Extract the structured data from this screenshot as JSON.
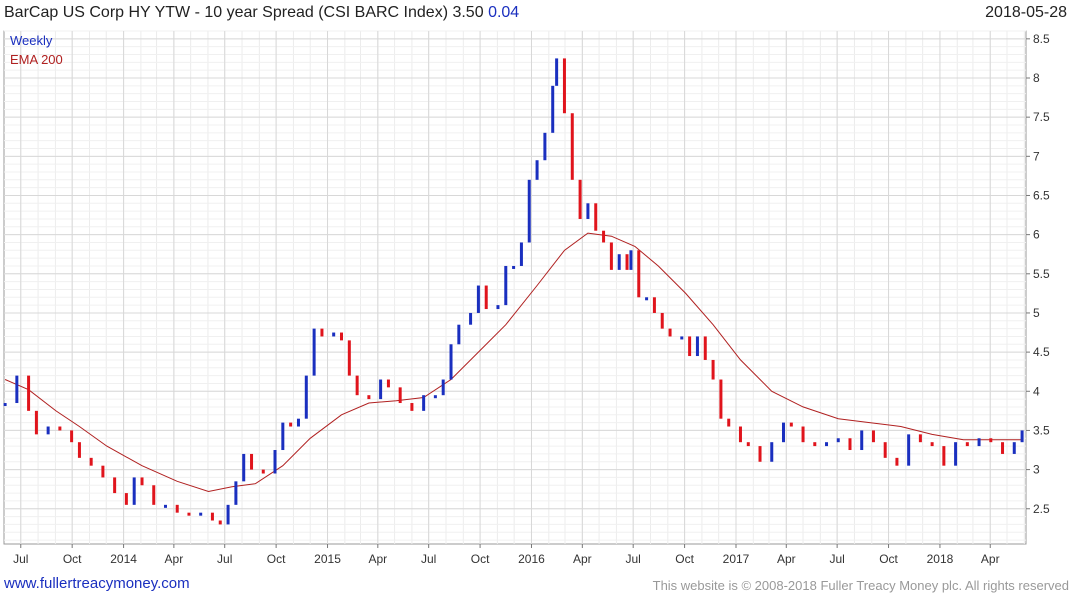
{
  "header": {
    "title": "BarCap US Corp HY YTW - 10 year Spread (CSI BARC Index) 3.50",
    "change": "0.04",
    "date": "2018-05-28"
  },
  "legend": {
    "weekly": "Weekly",
    "ema": "EMA 200"
  },
  "footer": {
    "link": "www.fullertreacymoney.com",
    "copyright": "This website is © 2008-2018 Fuller Treacy Money plc. All rights reserved"
  },
  "colors": {
    "up": "#1a2fbf",
    "down": "#e0141c",
    "ema": "#b02020",
    "grid": "#d8d8d8"
  },
  "chart_data": {
    "type": "line",
    "ylim": [
      2.05,
      8.6
    ],
    "yticks": [
      2.5,
      3,
      3.5,
      4,
      4.5,
      5,
      5.5,
      6,
      6.5,
      7,
      7.5,
      8,
      8.5
    ],
    "x_range": [
      "2013-06-01",
      "2018-06-04"
    ],
    "xticks": [
      {
        "label": "Jul",
        "date": "2013-07-01"
      },
      {
        "label": "Oct",
        "date": "2013-10-01"
      },
      {
        "label": "2014",
        "date": "2014-01-01"
      },
      {
        "label": "Apr",
        "date": "2014-04-01"
      },
      {
        "label": "Jul",
        "date": "2014-07-01"
      },
      {
        "label": "Oct",
        "date": "2014-10-01"
      },
      {
        "label": "2015",
        "date": "2015-01-01"
      },
      {
        "label": "Apr",
        "date": "2015-04-01"
      },
      {
        "label": "Jul",
        "date": "2015-07-01"
      },
      {
        "label": "Oct",
        "date": "2015-10-01"
      },
      {
        "label": "2016",
        "date": "2016-01-01"
      },
      {
        "label": "Apr",
        "date": "2016-04-01"
      },
      {
        "label": "Jul",
        "date": "2016-07-01"
      },
      {
        "label": "Oct",
        "date": "2016-10-01"
      },
      {
        "label": "2017",
        "date": "2017-01-01"
      },
      {
        "label": "Apr",
        "date": "2017-04-01"
      },
      {
        "label": "Jul",
        "date": "2017-07-01"
      },
      {
        "label": "Oct",
        "date": "2017-10-01"
      },
      {
        "label": "2018",
        "date": "2018-01-01"
      },
      {
        "label": "Apr",
        "date": "2018-04-01"
      }
    ],
    "series": [
      {
        "name": "Weekly",
        "points": [
          [
            "2013-06-03",
            3.85
          ],
          [
            "2013-06-24",
            4.2
          ],
          [
            "2013-07-15",
            3.75
          ],
          [
            "2013-07-29",
            3.45
          ],
          [
            "2013-08-19",
            3.55
          ],
          [
            "2013-09-09",
            3.5
          ],
          [
            "2013-09-30",
            3.35
          ],
          [
            "2013-10-14",
            3.15
          ],
          [
            "2013-11-04",
            3.05
          ],
          [
            "2013-11-25",
            2.9
          ],
          [
            "2013-12-16",
            2.7
          ],
          [
            "2014-01-06",
            2.55
          ],
          [
            "2014-01-20",
            2.9
          ],
          [
            "2014-02-03",
            2.8
          ],
          [
            "2014-02-24",
            2.55
          ],
          [
            "2014-03-17",
            2.55
          ],
          [
            "2014-04-07",
            2.45
          ],
          [
            "2014-04-28",
            2.42
          ],
          [
            "2014-05-19",
            2.45
          ],
          [
            "2014-06-09",
            2.35
          ],
          [
            "2014-06-23",
            2.3
          ],
          [
            "2014-07-07",
            2.55
          ],
          [
            "2014-07-21",
            2.85
          ],
          [
            "2014-08-04",
            3.2
          ],
          [
            "2014-08-18",
            3.0
          ],
          [
            "2014-09-08",
            2.95
          ],
          [
            "2014-09-29",
            3.25
          ],
          [
            "2014-10-13",
            3.6
          ],
          [
            "2014-10-27",
            3.55
          ],
          [
            "2014-11-10",
            3.65
          ],
          [
            "2014-11-24",
            4.2
          ],
          [
            "2014-12-08",
            4.8
          ],
          [
            "2014-12-22",
            4.7
          ],
          [
            "2015-01-12",
            4.75
          ],
          [
            "2015-01-26",
            4.65
          ],
          [
            "2015-02-09",
            4.2
          ],
          [
            "2015-02-23",
            3.95
          ],
          [
            "2015-03-16",
            3.9
          ],
          [
            "2015-04-06",
            4.15
          ],
          [
            "2015-04-20",
            4.05
          ],
          [
            "2015-05-11",
            3.85
          ],
          [
            "2015-06-01",
            3.75
          ],
          [
            "2015-06-22",
            3.95
          ],
          [
            "2015-07-13",
            3.95
          ],
          [
            "2015-07-27",
            4.15
          ],
          [
            "2015-08-10",
            4.6
          ],
          [
            "2015-08-24",
            4.85
          ],
          [
            "2015-09-14",
            5.0
          ],
          [
            "2015-09-28",
            5.35
          ],
          [
            "2015-10-12",
            5.05
          ],
          [
            "2015-11-02",
            5.1
          ],
          [
            "2015-11-16",
            5.6
          ],
          [
            "2015-11-30",
            5.6
          ],
          [
            "2015-12-14",
            5.9
          ],
          [
            "2015-12-28",
            6.7
          ],
          [
            "2016-01-11",
            6.95
          ],
          [
            "2016-01-25",
            7.3
          ],
          [
            "2016-02-08",
            7.9
          ],
          [
            "2016-02-15",
            8.25
          ],
          [
            "2016-02-29",
            7.55
          ],
          [
            "2016-03-14",
            6.7
          ],
          [
            "2016-03-28",
            6.2
          ],
          [
            "2016-04-11",
            6.4
          ],
          [
            "2016-04-25",
            6.05
          ],
          [
            "2016-05-09",
            5.9
          ],
          [
            "2016-05-23",
            5.55
          ],
          [
            "2016-06-06",
            5.75
          ],
          [
            "2016-06-20",
            5.55
          ],
          [
            "2016-06-27",
            5.8
          ],
          [
            "2016-07-11",
            5.2
          ],
          [
            "2016-07-25",
            5.2
          ],
          [
            "2016-08-08",
            5.0
          ],
          [
            "2016-08-22",
            4.8
          ],
          [
            "2016-09-05",
            4.7
          ],
          [
            "2016-09-26",
            4.7
          ],
          [
            "2016-10-10",
            4.45
          ],
          [
            "2016-10-24",
            4.7
          ],
          [
            "2016-11-07",
            4.4
          ],
          [
            "2016-11-21",
            4.15
          ],
          [
            "2016-12-05",
            3.65
          ],
          [
            "2016-12-19",
            3.55
          ],
          [
            "2017-01-09",
            3.35
          ],
          [
            "2017-01-23",
            3.3
          ],
          [
            "2017-02-13",
            3.1
          ],
          [
            "2017-03-06",
            3.35
          ],
          [
            "2017-03-27",
            3.6
          ],
          [
            "2017-04-10",
            3.55
          ],
          [
            "2017-05-01",
            3.35
          ],
          [
            "2017-05-22",
            3.3
          ],
          [
            "2017-06-12",
            3.35
          ],
          [
            "2017-07-03",
            3.4
          ],
          [
            "2017-07-24",
            3.25
          ],
          [
            "2017-08-14",
            3.5
          ],
          [
            "2017-09-04",
            3.35
          ],
          [
            "2017-09-25",
            3.15
          ],
          [
            "2017-10-16",
            3.05
          ],
          [
            "2017-11-06",
            3.45
          ],
          [
            "2017-11-27",
            3.35
          ],
          [
            "2017-12-18",
            3.3
          ],
          [
            "2018-01-08",
            3.05
          ],
          [
            "2018-01-29",
            3.35
          ],
          [
            "2018-02-19",
            3.3
          ],
          [
            "2018-03-12",
            3.4
          ],
          [
            "2018-04-02",
            3.35
          ],
          [
            "2018-04-23",
            3.2
          ],
          [
            "2018-05-14",
            3.35
          ],
          [
            "2018-05-28",
            3.5
          ]
        ]
      },
      {
        "name": "EMA 200",
        "points": [
          [
            "2013-06-03",
            4.15
          ],
          [
            "2013-07-15",
            4.02
          ],
          [
            "2013-09-02",
            3.75
          ],
          [
            "2013-10-14",
            3.55
          ],
          [
            "2013-12-02",
            3.3
          ],
          [
            "2014-02-03",
            3.05
          ],
          [
            "2014-04-07",
            2.85
          ],
          [
            "2014-06-02",
            2.72
          ],
          [
            "2014-07-14",
            2.78
          ],
          [
            "2014-08-25",
            2.82
          ],
          [
            "2014-10-13",
            3.05
          ],
          [
            "2014-12-01",
            3.4
          ],
          [
            "2015-01-26",
            3.7
          ],
          [
            "2015-03-16",
            3.85
          ],
          [
            "2015-05-04",
            3.88
          ],
          [
            "2015-06-22",
            3.92
          ],
          [
            "2015-08-10",
            4.15
          ],
          [
            "2015-09-28",
            4.5
          ],
          [
            "2015-11-16",
            4.85
          ],
          [
            "2016-01-11",
            5.35
          ],
          [
            "2016-02-29",
            5.8
          ],
          [
            "2016-04-11",
            6.02
          ],
          [
            "2016-05-23",
            5.98
          ],
          [
            "2016-07-04",
            5.85
          ],
          [
            "2016-08-15",
            5.6
          ],
          [
            "2016-10-03",
            5.25
          ],
          [
            "2016-11-21",
            4.85
          ],
          [
            "2017-01-09",
            4.4
          ],
          [
            "2017-03-06",
            4.0
          ],
          [
            "2017-05-01",
            3.8
          ],
          [
            "2017-07-03",
            3.65
          ],
          [
            "2017-08-28",
            3.6
          ],
          [
            "2017-10-23",
            3.55
          ],
          [
            "2017-12-18",
            3.45
          ],
          [
            "2018-02-12",
            3.38
          ],
          [
            "2018-04-09",
            3.38
          ],
          [
            "2018-05-28",
            3.38
          ]
        ]
      }
    ]
  }
}
